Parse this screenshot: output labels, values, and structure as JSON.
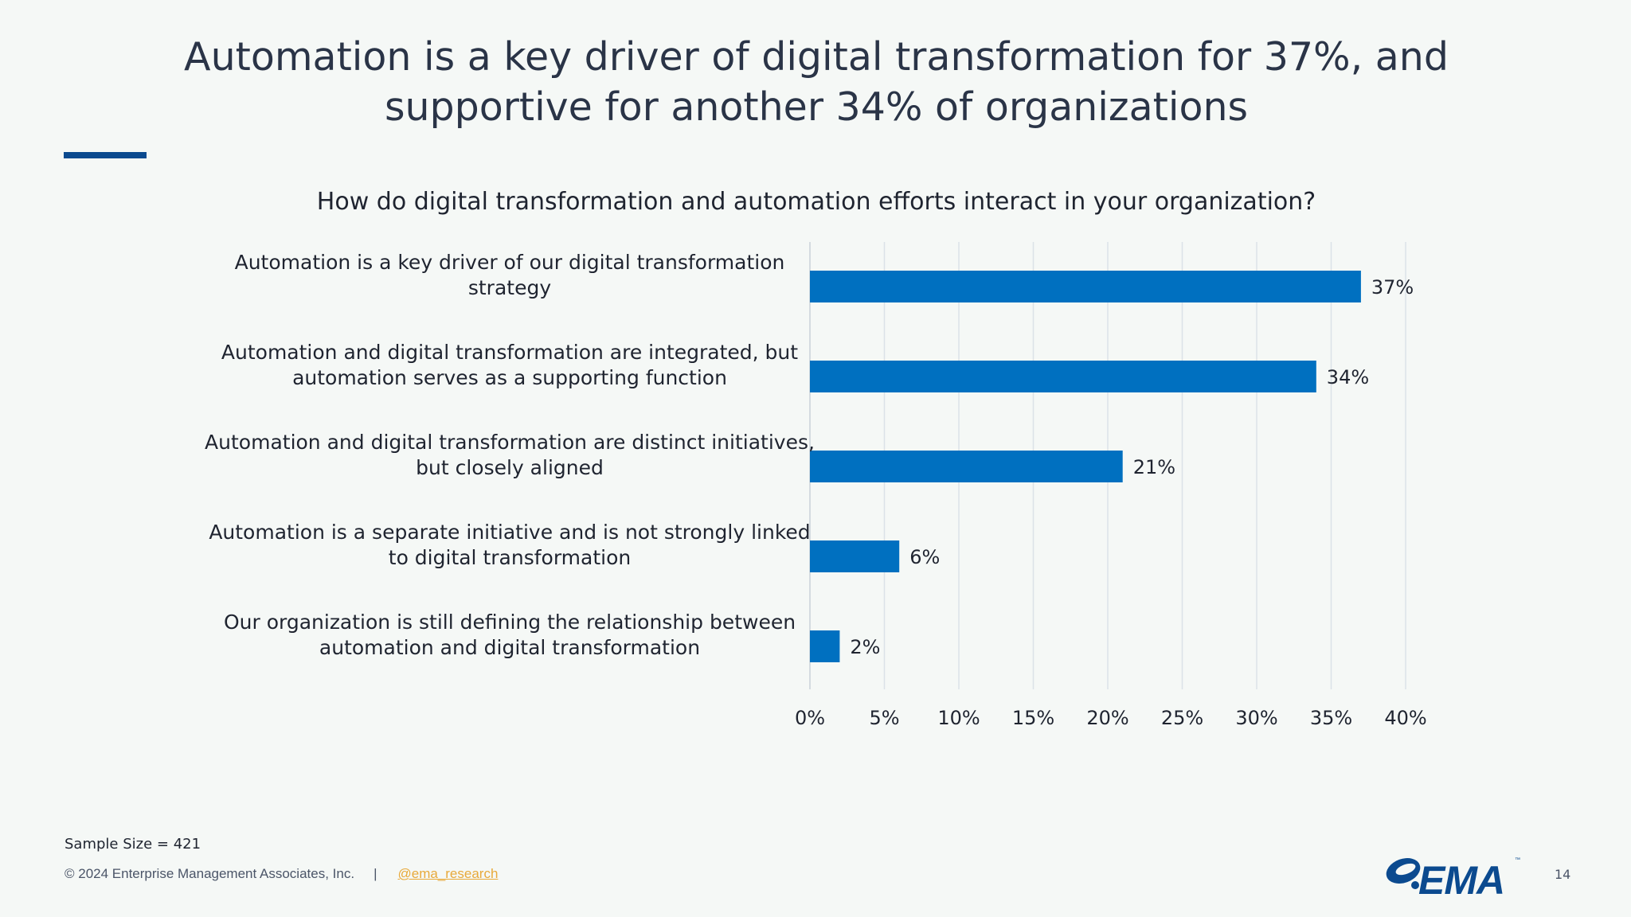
{
  "slide": {
    "title": "Automation is a key driver of digital transformation for 37%, and supportive for another 34% of organizations",
    "sample_size": "Sample Size = 421",
    "copyright": "© 2024 Enterprise Management Associates, Inc.",
    "separator": "|",
    "handle": "@ema_research",
    "page_number": "14",
    "logo_text": "EMA",
    "colors": {
      "bar": "#0070c0",
      "accent_rule": "#0b4a8f",
      "link": "#e8a93a",
      "background": "#f5f8f6"
    }
  },
  "chart_data": {
    "type": "bar",
    "orientation": "horizontal",
    "title": "How do digital transformation and automation efforts interact in your organization?",
    "categories": [
      [
        "Automation is a key driver of our digital transformation",
        "strategy"
      ],
      [
        "Automation and digital transformation are integrated, but",
        "automation serves as a supporting function"
      ],
      [
        "Automation and digital transformation are distinct initiatives,",
        "but closely aligned"
      ],
      [
        "Automation is a separate initiative and is not strongly linked",
        "to digital transformation"
      ],
      [
        "Our organization is still defining the relationship between",
        "automation and digital transformation"
      ]
    ],
    "values": [
      37,
      34,
      21,
      6,
      2
    ],
    "value_labels": [
      "37%",
      "34%",
      "21%",
      "6%",
      "2%"
    ],
    "xlim": [
      0,
      40
    ],
    "xticks": [
      0,
      5,
      10,
      15,
      20,
      25,
      30,
      35,
      40
    ],
    "xtick_labels": [
      "0%",
      "5%",
      "10%",
      "15%",
      "20%",
      "25%",
      "30%",
      "35%",
      "40%"
    ],
    "grid": true
  }
}
